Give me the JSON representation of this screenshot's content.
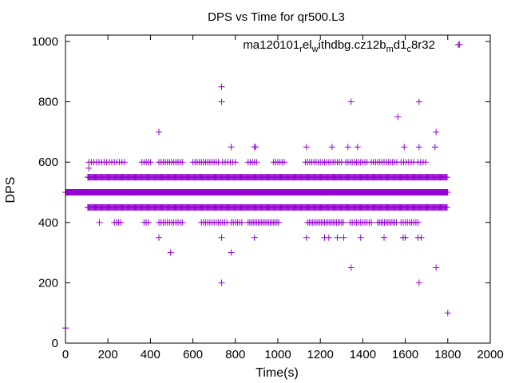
{
  "chart_data": {
    "type": "scatter",
    "title": "DPS vs Time for qr500.L3",
    "xlabel": "Time(s)",
    "ylabel": "DPS",
    "xlim": [
      0,
      2000
    ],
    "ylim": [
      0,
      1000
    ],
    "xticks": [
      0,
      200,
      400,
      600,
      800,
      1000,
      1200,
      1400,
      1600,
      1800,
      2000
    ],
    "yticks": [
      0,
      200,
      400,
      600,
      800,
      1000
    ],
    "grid": false,
    "legend_placement": "top-right",
    "series": [
      {
        "name": "ma120101_rel_withdbg.cz12b_md1_c8r32",
        "legend_parts": [
          {
            "t": "ma120101",
            "sub": false
          },
          {
            "t": "r",
            "sub": true
          },
          {
            "t": "el",
            "sub": false
          },
          {
            "t": "w",
            "sub": true
          },
          {
            "t": "ithdbg.cz12b",
            "sub": false
          },
          {
            "t": "m",
            "sub": true
          },
          {
            "t": "d1",
            "sub": false
          },
          {
            "t": "c",
            "sub": true
          },
          {
            "t": "8r32",
            "sub": false
          }
        ],
        "color": "#9400d3",
        "marker": "plus",
        "dense_ranges": [
          {
            "y": 500,
            "x_start": 0,
            "x_end": 1800,
            "step": 3
          },
          {
            "y": 550,
            "x_start": 105,
            "x_end": 1800,
            "step": 4
          },
          {
            "y": 450,
            "x_start": 105,
            "x_end": 1800,
            "step": 4
          },
          {
            "y": 600,
            "x_start": 110,
            "x_end": 280,
            "step": 12
          },
          {
            "y": 600,
            "x_start": 360,
            "x_end": 400,
            "step": 10
          },
          {
            "y": 600,
            "x_start": 440,
            "x_end": 550,
            "step": 10
          },
          {
            "y": 600,
            "x_start": 600,
            "x_end": 720,
            "step": 10
          },
          {
            "y": 600,
            "x_start": 740,
            "x_end": 800,
            "step": 12
          },
          {
            "y": 600,
            "x_start": 860,
            "x_end": 900,
            "step": 10
          },
          {
            "y": 600,
            "x_start": 980,
            "x_end": 1030,
            "step": 10
          },
          {
            "y": 600,
            "x_start": 1130,
            "x_end": 1300,
            "step": 10
          },
          {
            "y": 600,
            "x_start": 1320,
            "x_end": 1420,
            "step": 10
          },
          {
            "y": 600,
            "x_start": 1440,
            "x_end": 1560,
            "step": 10
          },
          {
            "y": 600,
            "x_start": 1580,
            "x_end": 1640,
            "step": 12
          },
          {
            "y": 600,
            "x_start": 1660,
            "x_end": 1700,
            "step": 12
          },
          {
            "y": 400,
            "x_start": 230,
            "x_end": 260,
            "step": 10
          },
          {
            "y": 400,
            "x_start": 370,
            "x_end": 390,
            "step": 10
          },
          {
            "y": 400,
            "x_start": 440,
            "x_end": 550,
            "step": 10
          },
          {
            "y": 400,
            "x_start": 640,
            "x_end": 760,
            "step": 10
          },
          {
            "y": 400,
            "x_start": 780,
            "x_end": 830,
            "step": 10
          },
          {
            "y": 400,
            "x_start": 860,
            "x_end": 1010,
            "step": 8
          },
          {
            "y": 400,
            "x_start": 1140,
            "x_end": 1310,
            "step": 8
          },
          {
            "y": 400,
            "x_start": 1340,
            "x_end": 1440,
            "step": 10
          },
          {
            "y": 400,
            "x_start": 1470,
            "x_end": 1560,
            "step": 8
          },
          {
            "y": 400,
            "x_start": 1580,
            "x_end": 1660,
            "step": 10
          }
        ],
        "points": [
          [
            0,
            50
          ],
          [
            110,
            580
          ],
          [
            160,
            400
          ],
          [
            440,
            700
          ],
          [
            440,
            350
          ],
          [
            495,
            300
          ],
          [
            735,
            850
          ],
          [
            735,
            800
          ],
          [
            735,
            350
          ],
          [
            735,
            200
          ],
          [
            780,
            650
          ],
          [
            780,
            300
          ],
          [
            890,
            650
          ],
          [
            895,
            650
          ],
          [
            890,
            350
          ],
          [
            1135,
            650
          ],
          [
            1135,
            350
          ],
          [
            1220,
            350
          ],
          [
            1240,
            350
          ],
          [
            1255,
            650
          ],
          [
            1280,
            350
          ],
          [
            1310,
            350
          ],
          [
            1330,
            650
          ],
          [
            1345,
            800
          ],
          [
            1345,
            250
          ],
          [
            1375,
            650
          ],
          [
            1390,
            350
          ],
          [
            1500,
            350
          ],
          [
            1565,
            750
          ],
          [
            1590,
            350
          ],
          [
            1595,
            650
          ],
          [
            1600,
            350
          ],
          [
            1660,
            350
          ],
          [
            1665,
            800
          ],
          [
            1665,
            650
          ],
          [
            1665,
            200
          ],
          [
            1675,
            350
          ],
          [
            1740,
            650
          ],
          [
            1745,
            700
          ],
          [
            1745,
            250
          ],
          [
            1800,
            100
          ],
          [
            1855,
            990
          ]
        ]
      }
    ]
  }
}
